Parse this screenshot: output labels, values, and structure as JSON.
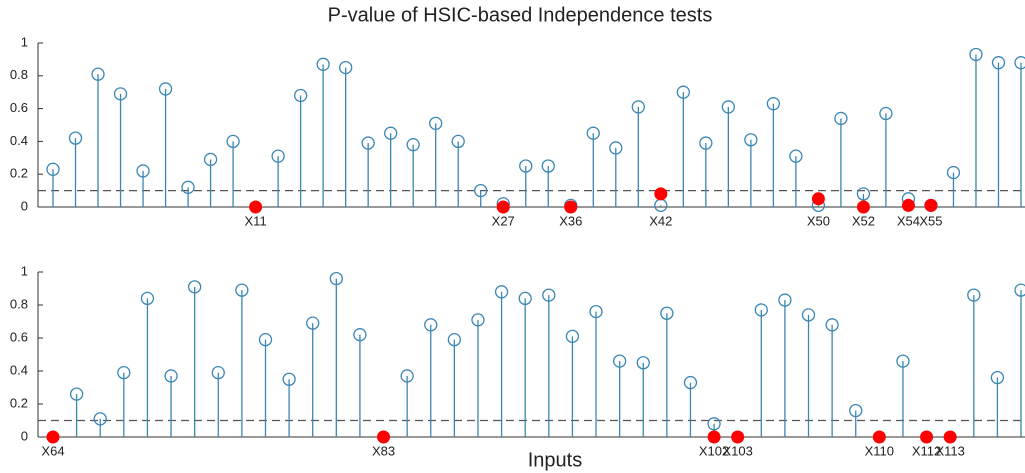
{
  "chart_data": [
    {
      "type": "stem",
      "title": "P-value of HSIC-based Independence tests",
      "categories": [
        null,
        null,
        null,
        null,
        null,
        null,
        null,
        null,
        null,
        "X11",
        null,
        null,
        null,
        null,
        null,
        null,
        null,
        null,
        null,
        null,
        "X27",
        null,
        null,
        "X36",
        null,
        null,
        null,
        "X42",
        null,
        null,
        null,
        null,
        null,
        null,
        "X50",
        null,
        "X52",
        null,
        "X54",
        "X55",
        null,
        null,
        null,
        null
      ],
      "series": [
        {
          "color": "#3a86b4",
          "values": [
            0.23,
            0.42,
            0.81,
            0.69,
            0.22,
            0.72,
            0.12,
            0.29,
            0.4,
            null,
            0.31,
            0.68,
            0.87,
            0.85,
            0.39,
            0.45,
            0.38,
            0.51,
            0.4,
            0.1,
            0.02,
            0.25,
            0.25,
            0.01,
            0.45,
            0.36,
            0.61,
            0.01,
            0.7,
            0.39,
            0.61,
            0.41,
            0.63,
            0.31,
            0.01,
            0.54,
            0.08,
            0.57,
            0.05,
            0.01,
            0.21,
            0.93,
            0.88,
            0.88
          ]
        },
        {
          "color": "#ff0000",
          "values": [
            null,
            null,
            null,
            null,
            null,
            null,
            null,
            null,
            null,
            0,
            null,
            null,
            null,
            null,
            null,
            null,
            null,
            null,
            null,
            null,
            0,
            null,
            null,
            0,
            null,
            null,
            null,
            0.08,
            null,
            null,
            null,
            null,
            null,
            null,
            0.05,
            null,
            0,
            null,
            0.01,
            0.01,
            null,
            null,
            null,
            null
          ]
        }
      ],
      "threshold": 0.1,
      "ylim": [
        0,
        1
      ],
      "yticks": [
        0,
        0.2,
        0.4,
        0.6,
        0.8,
        1
      ]
    },
    {
      "type": "stem",
      "xlabel": "Inputs",
      "categories": [
        "X64",
        null,
        null,
        null,
        null,
        null,
        null,
        null,
        null,
        null,
        null,
        null,
        null,
        null,
        "X83",
        null,
        null,
        null,
        null,
        null,
        null,
        null,
        null,
        null,
        null,
        null,
        null,
        null,
        "X102",
        "X103",
        null,
        null,
        null,
        null,
        null,
        "X110",
        null,
        "X112",
        "X113",
        null,
        null,
        null
      ],
      "series": [
        {
          "color": "#3a86b4",
          "values": [
            null,
            0.26,
            0.11,
            0.39,
            0.84,
            0.37,
            0.91,
            0.39,
            0.89,
            0.59,
            0.35,
            0.69,
            0.96,
            0.62,
            null,
            0.37,
            0.68,
            0.59,
            0.71,
            0.88,
            0.84,
            0.86,
            0.61,
            0.76,
            0.46,
            0.45,
            0.75,
            0.33,
            0.08,
            null,
            0.77,
            0.83,
            0.74,
            0.68,
            0.16,
            null,
            0.46,
            null,
            null,
            0.86,
            0.36,
            0.89
          ]
        },
        {
          "color": "#ff0000",
          "values": [
            0,
            null,
            null,
            null,
            null,
            null,
            null,
            null,
            null,
            null,
            null,
            null,
            null,
            null,
            0,
            null,
            null,
            null,
            null,
            null,
            null,
            null,
            null,
            null,
            null,
            null,
            null,
            null,
            0,
            0,
            null,
            null,
            null,
            null,
            null,
            0,
            null,
            0,
            0,
            null,
            null,
            null
          ]
        }
      ],
      "threshold": 0.1,
      "ylim": [
        0,
        1
      ],
      "yticks": [
        0,
        0.2,
        0.4,
        0.6,
        0.8,
        1
      ]
    }
  ]
}
